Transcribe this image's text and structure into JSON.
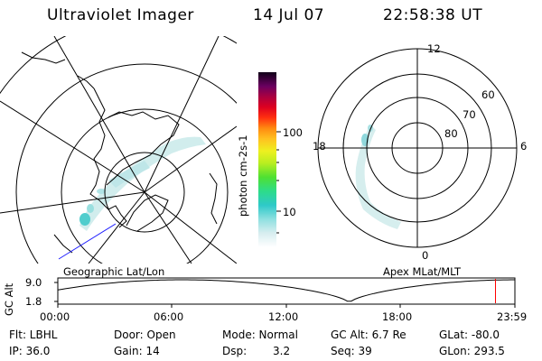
{
  "header": {
    "instrument": "Ultraviolet Imager",
    "date": "14 Jul 07",
    "time": "22:58:38 UT"
  },
  "geo_panel": {
    "label": "Geographic Lat/Lon"
  },
  "mag_panel": {
    "label": "Apex MLat/MLT",
    "mlt_labels": {
      "top": "12",
      "left": "18",
      "right": "6",
      "bottom": "0"
    },
    "lat_labels": [
      "60",
      "70",
      "80"
    ]
  },
  "colorbar": {
    "unit_label": "photon cm-2s-1",
    "ticks": [
      "100",
      "10"
    ]
  },
  "orbit_plot": {
    "ylabel": "GC Alt",
    "yticks": [
      "9.0",
      "1.8"
    ],
    "xticks": [
      "00:00",
      "06:00",
      "12:00",
      "18:00",
      "23:59"
    ],
    "current_time_hours": 22.98,
    "marker_color": "#ff0000"
  },
  "info": {
    "flt": "Flt: LBHL",
    "ip": "IP: 36.0",
    "door": "Door: Open",
    "gain": "Gain: 14",
    "mode": "Mode: Normal",
    "dsp_label": "Dsp:",
    "dsp_value": "3.2",
    "gcalt": "GC Alt: 6.7 Re",
    "seq": "Seq: 39",
    "glat": "GLat: -80.0",
    "glon": "GLon: 293.5"
  }
}
